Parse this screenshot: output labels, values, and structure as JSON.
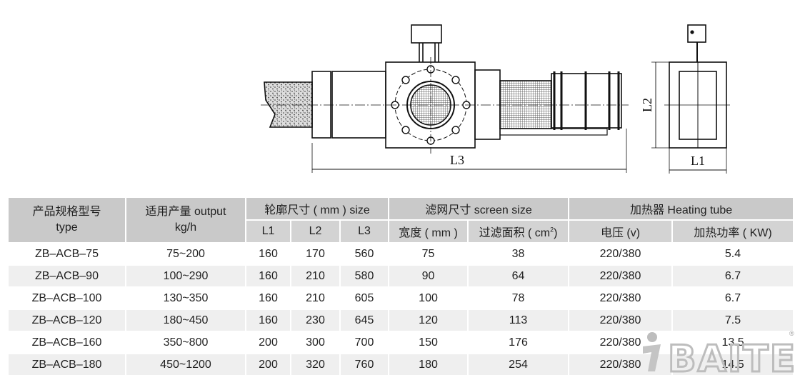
{
  "drawing": {
    "dim_l3": "L3",
    "dim_l2": "L2",
    "dim_l1": "L1"
  },
  "table": {
    "headers": {
      "type": "产品规格型号",
      "type_en": "type",
      "output": "适用产量 output",
      "output_unit": "kg/h",
      "size": "轮廓尺寸 ( mm ) size",
      "screen": "滤网尺寸 screen size",
      "heating": "加热器 Heating tube",
      "l1": "L1",
      "l2": "L2",
      "l3": "L3",
      "width": "宽度 ( mm )",
      "area": "过滤面积 ( cm",
      "area_sup": "2",
      "area_close": ")",
      "voltage": "电压 (v)",
      "power": "加热功率 ( KW)"
    },
    "rows": [
      [
        "ZB–ACB–75",
        "75~200",
        "160",
        "170",
        "560",
        "75",
        "38",
        "220/380",
        "5.4"
      ],
      [
        "ZB–ACB–90",
        "100~290",
        "160",
        "210",
        "580",
        "90",
        "64",
        "220/380",
        "6.7"
      ],
      [
        "ZB–ACB–100",
        "130~350",
        "160",
        "210",
        "605",
        "100",
        "78",
        "220/380",
        "6.7"
      ],
      [
        "ZB–ACB–120",
        "180~450",
        "160",
        "230",
        "645",
        "120",
        "113",
        "220/380",
        "7.5"
      ],
      [
        "ZB–ACB–160",
        "350~800",
        "200",
        "300",
        "700",
        "150",
        "176",
        "220/380",
        "13.5"
      ],
      [
        "ZB–ACB–180",
        "450~1200",
        "200",
        "320",
        "760",
        "180",
        "254",
        "220/380",
        "14.5"
      ]
    ]
  },
  "logo": {
    "text": "BAITE",
    "mark": "®",
    "color": "#b5b5b5"
  }
}
